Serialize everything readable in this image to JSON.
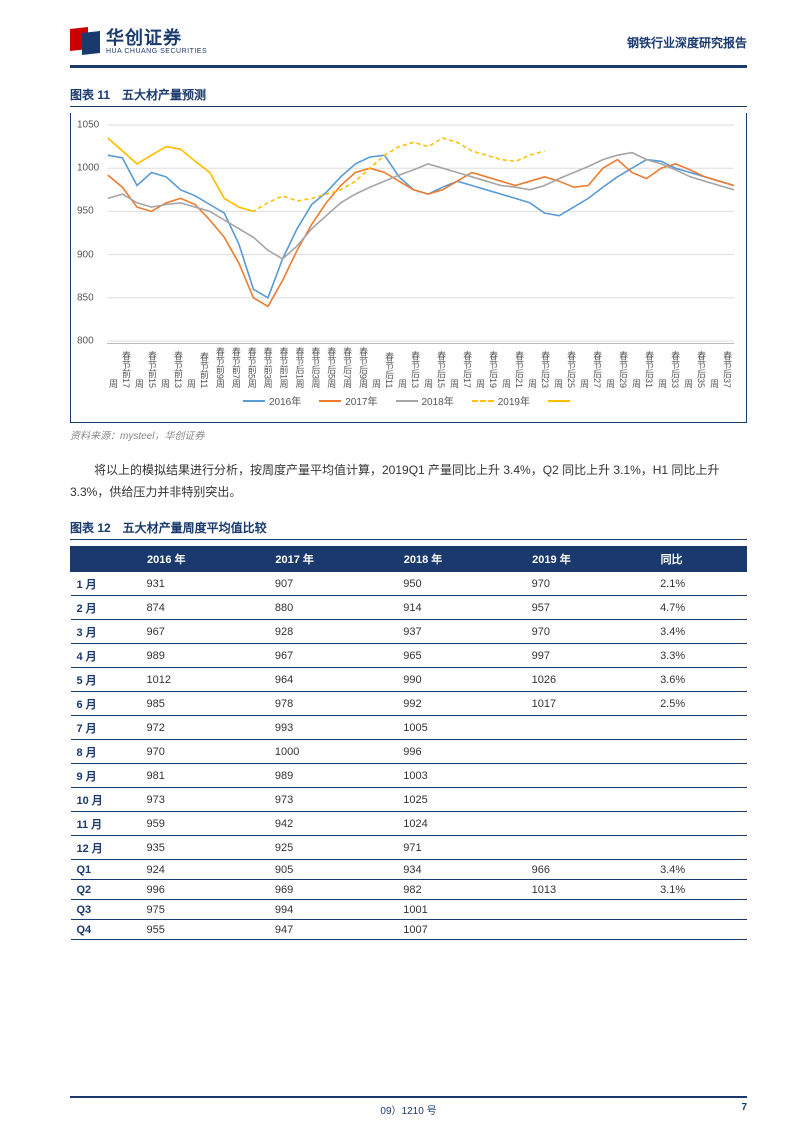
{
  "header": {
    "logo_cn": "华创证券",
    "logo_en": "HUA CHUANG SECURITIES",
    "doc_type": "钢铁行业深度研究报告"
  },
  "chart11": {
    "title": "图表 11　五大材产量预测",
    "type": "line",
    "ylim": [
      800,
      1050
    ],
    "ytick_step": 50,
    "yticks": [
      800,
      850,
      900,
      950,
      1000,
      1050
    ],
    "grid_color": "#dddddd",
    "background_color": "#ffffff",
    "x_labels": [
      "春节前17周",
      "春节前15周",
      "春节前13周",
      "春节前11周",
      "春节前9周",
      "春节前7周",
      "春节前5周",
      "春节前3周",
      "春节前1周",
      "春节后1周",
      "春节后3周",
      "春节后5周",
      "春节后7周",
      "春节后9周",
      "春节后11周",
      "春节后13周",
      "春节后15周",
      "春节后17周",
      "春节后19周",
      "春节后21周",
      "春节后23周",
      "春节后25周",
      "春节后27周",
      "春节后29周",
      "春节后31周",
      "春节后33周",
      "春节后35周",
      "春节后37周"
    ],
    "series": [
      {
        "name": "2016年",
        "color": "#5b9bd5",
        "dash": false,
        "values": [
          1015,
          1012,
          980,
          995,
          990,
          975,
          968,
          958,
          948,
          912,
          860,
          850,
          895,
          930,
          958,
          972,
          990,
          1005,
          1013,
          1015,
          990,
          975,
          970,
          978,
          985,
          980,
          975,
          970,
          965,
          960,
          948,
          945,
          955,
          965,
          978,
          990,
          1000,
          1010,
          1008,
          1000,
          995,
          990,
          985,
          980
        ]
      },
      {
        "name": "2017年",
        "color": "#ed7d31",
        "dash": false,
        "values": [
          992,
          978,
          955,
          950,
          960,
          965,
          958,
          940,
          920,
          890,
          850,
          840,
          870,
          905,
          935,
          960,
          980,
          995,
          1000,
          995,
          985,
          975,
          970,
          975,
          985,
          995,
          990,
          985,
          980,
          985,
          990,
          985,
          978,
          980,
          1000,
          1010,
          995,
          988,
          1000,
          1005,
          998,
          990,
          985,
          980
        ]
      },
      {
        "name": "2018年",
        "color": "#a5a5a5",
        "dash": false,
        "values": [
          965,
          970,
          960,
          955,
          958,
          960,
          955,
          950,
          940,
          930,
          920,
          905,
          895,
          910,
          930,
          945,
          960,
          970,
          978,
          985,
          992,
          998,
          1005,
          1000,
          995,
          990,
          985,
          980,
          978,
          975,
          980,
          988,
          995,
          1002,
          1010,
          1015,
          1018,
          1010,
          1005,
          998,
          990,
          985,
          980,
          975
        ]
      },
      {
        "name": "2019年",
        "color": "#ffc000",
        "dash": true,
        "values": [
          1035,
          1020,
          1005,
          1015,
          1025,
          1022,
          1008,
          995,
          965,
          955,
          950,
          960,
          968,
          962,
          965,
          970,
          975,
          985,
          1000,
          1015,
          1025,
          1030,
          1025,
          1035,
          1030,
          1020,
          1015,
          1010,
          1008,
          1015,
          1020
        ]
      }
    ],
    "solid_yellow": {
      "name": "",
      "color": "#ffc000",
      "dash": false,
      "values": [
        1035,
        1020,
        1005,
        1015,
        1025,
        1022,
        1008,
        995,
        965,
        955,
        950
      ]
    },
    "legend_labels": [
      "2016年",
      "2017年",
      "2018年",
      "2019年",
      ""
    ],
    "source": "资料来源：mysteel，华创证券"
  },
  "body_para": "将以上的模拟结果进行分析，按周度产量平均值计算，2019Q1 产量同比上升 3.4%，Q2 同比上升 3.1%，H1 同比上升 3.3%，供给压力并非特别突出。",
  "table12": {
    "title": "图表 12　五大材产量周度平均值比较",
    "columns": [
      "",
      "2016 年",
      "2017 年",
      "2018 年",
      "2019 年",
      "同比"
    ],
    "rows": [
      [
        "1 月",
        "931",
        "907",
        "950",
        "970",
        "2.1%"
      ],
      [
        "2 月",
        "874",
        "880",
        "914",
        "957",
        "4.7%"
      ],
      [
        "3 月",
        "967",
        "928",
        "937",
        "970",
        "3.4%"
      ],
      [
        "4 月",
        "989",
        "967",
        "965",
        "997",
        "3.3%"
      ],
      [
        "5 月",
        "1012",
        "964",
        "990",
        "1026",
        "3.6%"
      ],
      [
        "6 月",
        "985",
        "978",
        "992",
        "1017",
        "2.5%"
      ],
      [
        "7 月",
        "972",
        "993",
        "1005",
        "",
        ""
      ],
      [
        "8 月",
        "970",
        "1000",
        "996",
        "",
        ""
      ],
      [
        "9 月",
        "981",
        "989",
        "1003",
        "",
        ""
      ],
      [
        "10 月",
        "973",
        "973",
        "1025",
        "",
        ""
      ],
      [
        "11 月",
        "959",
        "942",
        "1024",
        "",
        ""
      ],
      [
        "12 月",
        "935",
        "925",
        "971",
        "",
        ""
      ],
      [
        "Q1",
        "924",
        "905",
        "934",
        "966",
        "3.4%"
      ],
      [
        "Q2",
        "996",
        "969",
        "982",
        "1013",
        "3.1%"
      ],
      [
        "Q3",
        "975",
        "994",
        "1001",
        "",
        ""
      ],
      [
        "Q4",
        "955",
        "947",
        "1007",
        "",
        ""
      ]
    ]
  },
  "footer": {
    "center": "09）1210 号",
    "page": "7"
  }
}
